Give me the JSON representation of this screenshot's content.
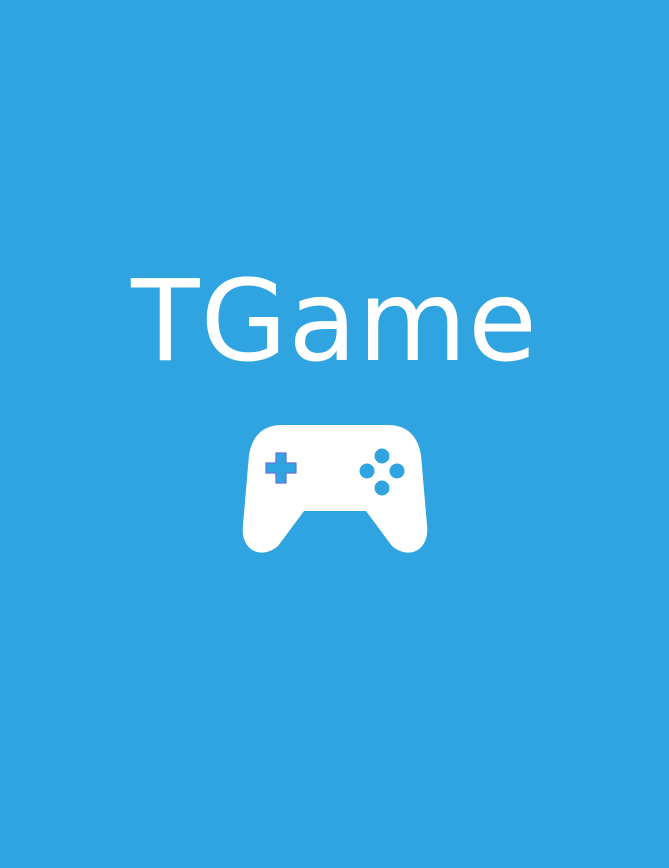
{
  "app": {
    "title": "TGame",
    "icon": "gamepad-icon"
  },
  "colors": {
    "background": "#2fa4e0",
    "foreground": "#ffffff",
    "dpad_fill": "#2fa4e0",
    "dpad_outline": "#5b74d6"
  }
}
